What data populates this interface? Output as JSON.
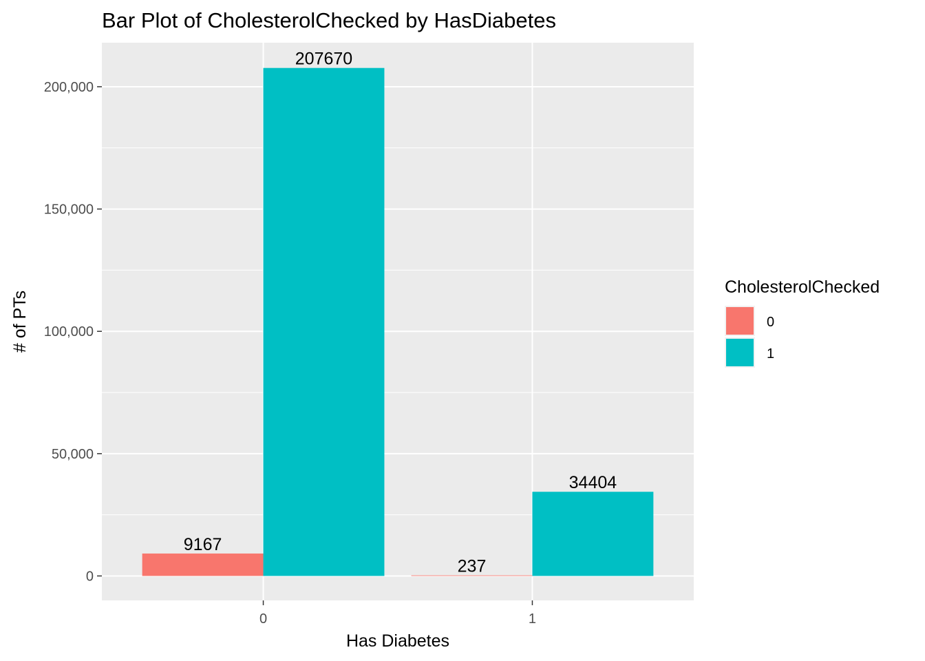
{
  "chart_data": {
    "type": "bar",
    "title": "Bar Plot of CholesterolChecked by HasDiabetes",
    "xlabel": "Has Diabetes",
    "ylabel": "# of PTs",
    "categories": [
      "0",
      "1"
    ],
    "series": [
      {
        "name": "0",
        "values": [
          9167,
          237
        ],
        "color": "#F8766D"
      },
      {
        "name": "1",
        "values": [
          207670,
          34404
        ],
        "color": "#00BFC4"
      }
    ],
    "data_labels": [
      [
        "9167",
        "237"
      ],
      [
        "207670",
        "34404"
      ]
    ],
    "legend": {
      "title": "CholesterolChecked",
      "labels": [
        "0",
        "1"
      ],
      "position": "right"
    },
    "ylim": [
      -10000,
      218000
    ],
    "yticks": [
      0,
      50000,
      100000,
      150000,
      200000
    ],
    "ytick_labels": [
      "0",
      "50,000",
      "100,000",
      "150,000",
      "200,000"
    ],
    "grid": true,
    "panel_background": "#EBEBEB",
    "grid_color": "#FFFFFF"
  }
}
